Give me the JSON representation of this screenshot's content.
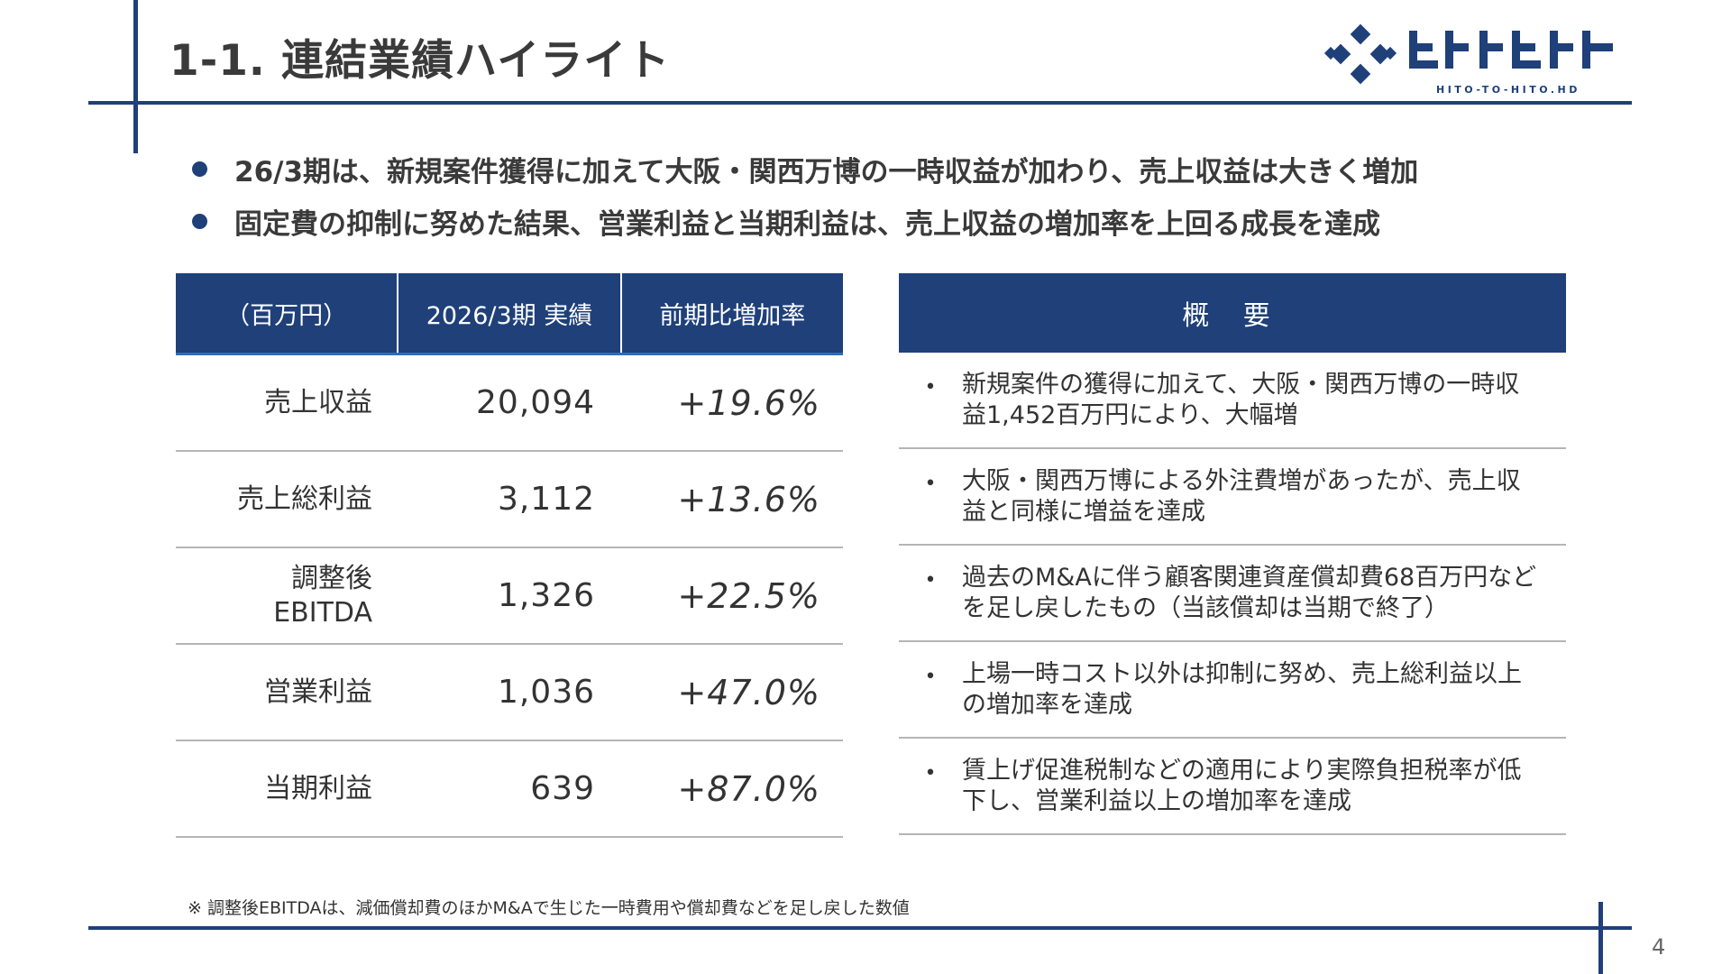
{
  "header": {
    "title": "1-1.  連結業績ハイライト",
    "logo_sub": "HITO-TO-HITO.HD",
    "brand_color": "#1f4079"
  },
  "bullets": [
    "26/3期は、新規案件獲得に加えて大阪・関西万博の一時収益が加わり、売上収益は大きく増加",
    "固定費の抑制に努めた結果、営業利益と当期利益は、売上収益の増加率を上回る成長を達成"
  ],
  "results_table": {
    "headers": [
      "（百万円）",
      "2026/3期 実績",
      "前期比増加率"
    ],
    "rows": [
      {
        "label": "売上収益",
        "value": "20,094",
        "growth": "+19.6%"
      },
      {
        "label": "売上総利益",
        "value": "3,112",
        "growth": "+13.6%"
      },
      {
        "label": "調整後\nEBITDA",
        "value": "1,326",
        "growth": "+22.5%"
      },
      {
        "label": "営業利益",
        "value": "1,036",
        "growth": "+47.0%"
      },
      {
        "label": "当期利益",
        "value": "639",
        "growth": "+87.0%"
      }
    ]
  },
  "overview": {
    "header": "概 要",
    "bullet_glyph": "•",
    "items": [
      "新規案件の獲得に加えて、大阪・関西万博の一時収益1,452百万円により、大幅増",
      "大阪・関西万博による外注費増があったが、売上収益と同様に増益を達成",
      "過去のM&Aに伴う顧客関連資産償却費68百万円などを足し戻したもの（当該償却は当期で終了）",
      "上場一時コスト以外は抑制に努め、売上総利益以上の増加率を達成",
      "賃上げ促進税制などの適用により実際負担税率が低下し、営業利益以上の増加率を達成"
    ]
  },
  "footnote": "※ 調整後EBITDAは、減価償却費のほかM&Aで生じた一時費用や償却費などを足し戻した数値",
  "page_number": "4"
}
